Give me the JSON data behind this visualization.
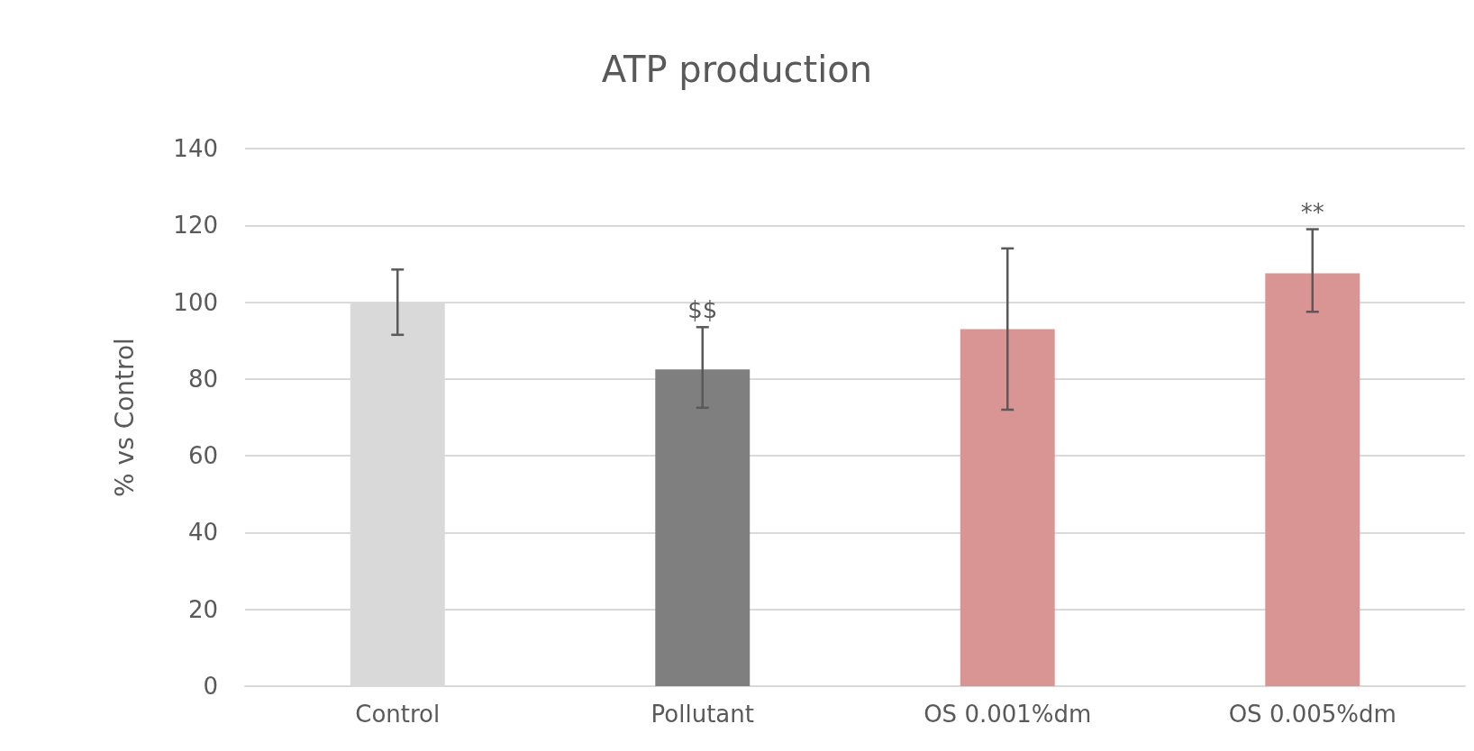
{
  "chart_data": {
    "type": "bar",
    "title": "ATP production",
    "ylabel": "% vs Control",
    "categories": [
      "Control",
      "Pollutant",
      "OS 0.001%dm",
      "OS 0.005%dm"
    ],
    "values": [
      100,
      82.5,
      93,
      107.5
    ],
    "colors": [
      "#d9d9d9",
      "#7f7f7f",
      "#d99594",
      "#d99594"
    ],
    "errors": [
      [
        91.5,
        108.5
      ],
      [
        72.5,
        93.5
      ],
      [
        72,
        114
      ],
      [
        97.5,
        119
      ]
    ],
    "ylim": [
      0,
      140
    ],
    "yticks": [
      0,
      20,
      40,
      60,
      80,
      100,
      120,
      140
    ],
    "grid": "y",
    "annotations": [
      {
        "text": "$$",
        "x": "Pollutant",
        "y": 93.5
      },
      {
        "text": "**",
        "x": "OS 0.005%dm",
        "y": 119
      }
    ]
  }
}
